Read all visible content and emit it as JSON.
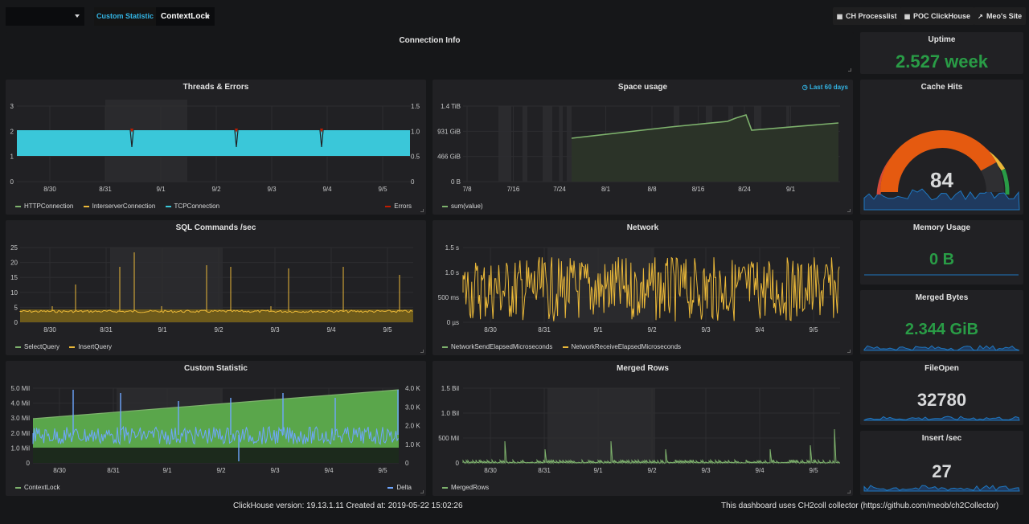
{
  "topbar": {
    "var_label": "Custom Statistic",
    "var_value": "ContextLock",
    "links": [
      {
        "label": "CH Processlist",
        "icon": "grid-icon"
      },
      {
        "label": "POC ClickHouse",
        "icon": "grid-icon"
      },
      {
        "label": "Meo's Site",
        "icon": "external-link-icon"
      }
    ]
  },
  "panels": {
    "connection_info": {
      "title": "Connection Info"
    },
    "uptime": {
      "title": "Uptime",
      "value": "2.527 week",
      "color": "#299c46"
    },
    "cache_hits": {
      "title": "Cache Hits",
      "value": "84",
      "gauge_fraction": 0.84
    },
    "memory_usage": {
      "title": "Memory Usage",
      "value": "0 B",
      "color": "#299c46"
    },
    "merged_bytes": {
      "title": "Merged Bytes",
      "value": "2.344 GiB",
      "color": "#299c46"
    },
    "file_open": {
      "title": "FileOpen",
      "value": "32780"
    },
    "insert_sec": {
      "title": "Insert /sec",
      "value": "27"
    },
    "threads_errors": {
      "title": "Threads & Errors",
      "y_left": [
        "3",
        "2",
        "1",
        "0"
      ],
      "y_right": [
        "1.5",
        "1.0",
        "0.5",
        "0"
      ],
      "x_ticks": [
        "8/30",
        "8/31",
        "9/1",
        "9/2",
        "9/3",
        "9/4",
        "9/5"
      ],
      "legend": [
        {
          "name": "HTTPConnection",
          "color": "#7eb26d"
        },
        {
          "name": "InterserverConnection",
          "color": "#eab839"
        },
        {
          "name": "TCPConnection",
          "color": "#3ac7d9"
        }
      ],
      "legend_right": {
        "name": "Errors",
        "color": "#bf1b00"
      }
    },
    "space_usage": {
      "title": "Space usage",
      "time_info": "Last 60 days",
      "y_left": [
        "1.4 TiB",
        "931 GiB",
        "466 GiB",
        "0 B"
      ],
      "x_ticks": [
        "7/8",
        "7/16",
        "7/24",
        "8/1",
        "8/8",
        "8/16",
        "8/24",
        "9/1"
      ],
      "legend": [
        {
          "name": "sum(value)",
          "color": "#7eb26d"
        }
      ]
    },
    "sql_commands": {
      "title": "SQL Commands /sec",
      "y_left": [
        "25",
        "20",
        "15",
        "10",
        "5",
        "0"
      ],
      "x_ticks": [
        "8/30",
        "8/31",
        "9/1",
        "9/2",
        "9/3",
        "9/4",
        "9/5"
      ],
      "legend": [
        {
          "name": "SelectQuery",
          "color": "#7eb26d"
        },
        {
          "name": "InsertQuery",
          "color": "#eab839"
        }
      ]
    },
    "network": {
      "title": "Network",
      "y_left": [
        "1.5 s",
        "1.0 s",
        "500 ms",
        "0 µs"
      ],
      "x_ticks": [
        "8/30",
        "8/31",
        "9/1",
        "9/2",
        "9/3",
        "9/4",
        "9/5"
      ],
      "legend": [
        {
          "name": "NetworkSendElapsedMicroseconds",
          "color": "#7eb26d"
        },
        {
          "name": "NetworkReceiveElapsedMicroseconds",
          "color": "#eab839"
        }
      ]
    },
    "custom_statistic": {
      "title": "Custom Statistic",
      "y_left": [
        "5.0 Mil",
        "4.0 Mil",
        "3.0 Mil",
        "2.0 Mil",
        "1.0 Mil",
        "0"
      ],
      "y_right": [
        "4.0 K",
        "3.0 K",
        "2.0 K",
        "1.0 K",
        "0"
      ],
      "x_ticks": [
        "8/30",
        "8/31",
        "9/1",
        "9/2",
        "9/3",
        "9/4",
        "9/5"
      ],
      "legend": [
        {
          "name": "ContextLock",
          "color": "#7eb26d"
        }
      ],
      "legend_right": {
        "name": "Delta",
        "color": "#6ea6ff"
      }
    },
    "merged_rows": {
      "title": "Merged Rows",
      "y_left": [
        "1.5 Bil",
        "1.0 Bil",
        "500 Mil",
        "0"
      ],
      "x_ticks": [
        "8/30",
        "8/31",
        "9/1",
        "9/2",
        "9/3",
        "9/4",
        "9/5"
      ],
      "legend": [
        {
          "name": "MergedRows",
          "color": "#7eb26d"
        }
      ]
    }
  },
  "footer": {
    "left": "ClickHouse version: 19.13.1.11 Created at: 2019-05-22 15:02:26",
    "right": "This dashboard uses CH2coll collector (https://github.com/meob/ch2Collector)"
  }
}
